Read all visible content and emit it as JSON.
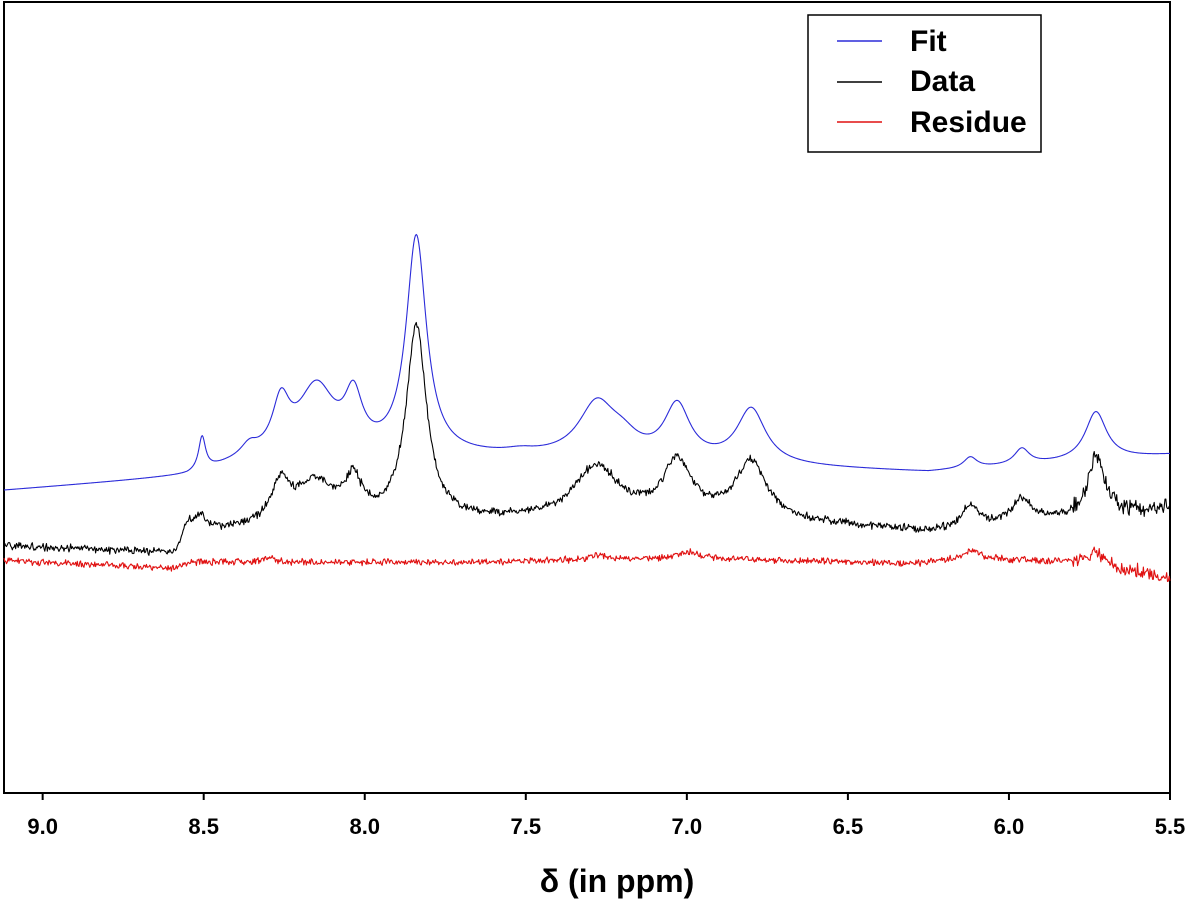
{
  "chart_data": {
    "type": "line",
    "xlabel": "δ (in ppm)",
    "ylabel": "",
    "title": "",
    "xlim": [
      9.12,
      5.5
    ],
    "x_reversed": true,
    "ylim": [
      0,
      1
    ],
    "x_ticks": [
      {
        "value": 9.0,
        "label": "9.0"
      },
      {
        "value": 8.5,
        "label": "8.5"
      },
      {
        "value": 8.0,
        "label": "8.0"
      },
      {
        "value": 7.5,
        "label": "7.5"
      },
      {
        "value": 7.0,
        "label": "7.0"
      },
      {
        "value": 6.5,
        "label": "6.5"
      },
      {
        "value": 6.0,
        "label": "6.0"
      },
      {
        "value": 5.5,
        "label": "5.5"
      }
    ],
    "legend": {
      "position": "top-right",
      "entries": [
        {
          "label": "Fit",
          "color": "#2b2bd9"
        },
        {
          "label": "Data",
          "color": "#000000"
        },
        {
          "label": "Residue",
          "color": "#e01010"
        }
      ]
    },
    "series": [
      {
        "name": "Fit",
        "color": "#2b2bd9",
        "baseline": [
          [
            9.12,
            0.382
          ],
          [
            8.55,
            0.399
          ],
          [
            8.35,
            0.419
          ],
          [
            7.5,
            0.424
          ],
          [
            6.25,
            0.405
          ],
          [
            5.5,
            0.427
          ]
        ],
        "peaks": [
          {
            "center": 8.505,
            "height": 0.042,
            "width": 0.013
          },
          {
            "center": 8.36,
            "height": 0.012,
            "width": 0.03
          },
          {
            "center": 8.26,
            "height": 0.062,
            "width": 0.032
          },
          {
            "center": 8.15,
            "height": 0.087,
            "width": 0.07
          },
          {
            "center": 8.035,
            "height": 0.065,
            "width": 0.033
          },
          {
            "center": 7.84,
            "height": 0.276,
            "width": 0.038
          },
          {
            "center": 7.52,
            "height": 0.003,
            "width": 0.05
          },
          {
            "center": 7.28,
            "height": 0.066,
            "width": 0.068
          },
          {
            "center": 7.2,
            "height": 0.02,
            "width": 0.06
          },
          {
            "center": 7.03,
            "height": 0.068,
            "width": 0.048
          },
          {
            "center": 6.8,
            "height": 0.069,
            "width": 0.054
          },
          {
            "center": 6.12,
            "height": 0.014,
            "width": 0.025
          },
          {
            "center": 5.96,
            "height": 0.02,
            "width": 0.028
          },
          {
            "center": 5.73,
            "height": 0.061,
            "width": 0.04
          }
        ]
      },
      {
        "name": "Data",
        "color": "#000000",
        "noise": 0.006,
        "baseline": [
          [
            9.12,
            0.312
          ],
          [
            8.59,
            0.302
          ],
          [
            8.55,
            0.34
          ],
          [
            8.45,
            0.331
          ],
          [
            7.6,
            0.344
          ],
          [
            6.9,
            0.35
          ],
          [
            6.25,
            0.33
          ],
          [
            5.5,
            0.36
          ]
        ],
        "peaks": [
          {
            "center": 8.51,
            "height": 0.012,
            "width": 0.015
          },
          {
            "center": 8.26,
            "height": 0.048,
            "width": 0.035
          },
          {
            "center": 8.15,
            "height": 0.052,
            "width": 0.08
          },
          {
            "center": 8.035,
            "height": 0.045,
            "width": 0.03
          },
          {
            "center": 7.84,
            "height": 0.247,
            "width": 0.038
          },
          {
            "center": 7.28,
            "height": 0.065,
            "width": 0.08
          },
          {
            "center": 7.03,
            "height": 0.068,
            "width": 0.05
          },
          {
            "center": 6.8,
            "height": 0.07,
            "width": 0.055
          },
          {
            "center": 6.12,
            "height": 0.028,
            "width": 0.03
          },
          {
            "center": 5.96,
            "height": 0.03,
            "width": 0.035
          },
          {
            "center": 5.73,
            "height": 0.075,
            "width": 0.03
          }
        ]
      },
      {
        "name": "Residue",
        "color": "#e01010",
        "noise": 0.005,
        "baseline": [
          [
            9.12,
            0.294
          ],
          [
            8.59,
            0.284
          ],
          [
            8.55,
            0.292
          ],
          [
            7.7,
            0.292
          ],
          [
            7.0,
            0.297
          ],
          [
            6.3,
            0.29
          ],
          [
            6.1,
            0.297
          ],
          [
            5.7,
            0.29
          ],
          [
            5.5,
            0.268
          ]
        ],
        "peaks": [
          {
            "center": 8.3,
            "height": 0.006,
            "width": 0.02
          },
          {
            "center": 7.28,
            "height": 0.006,
            "width": 0.03
          },
          {
            "center": 7.0,
            "height": 0.008,
            "width": 0.04
          },
          {
            "center": 6.12,
            "height": 0.01,
            "width": 0.03
          },
          {
            "center": 5.73,
            "height": 0.012,
            "width": 0.03
          }
        ]
      }
    ]
  }
}
